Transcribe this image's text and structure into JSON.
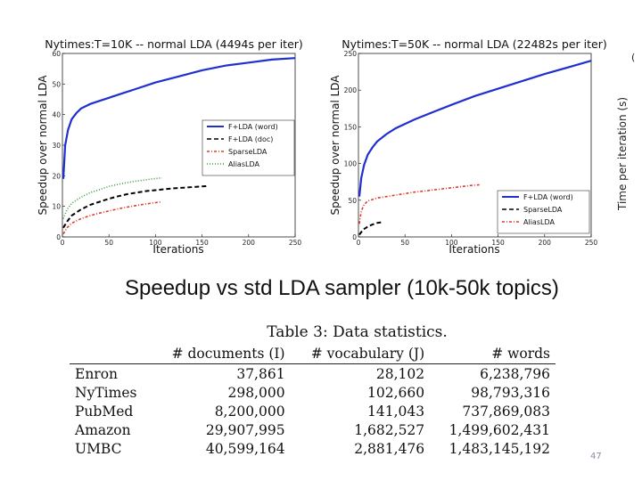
{
  "chart_data": [
    {
      "type": "line",
      "title": "Nytimes:T=10K -- normal LDA (4494s per iter)",
      "xlabel": "Iterations",
      "ylabel": "Speedup over normal LDA",
      "xlim": [
        0,
        250
      ],
      "ylim": [
        0,
        60
      ],
      "xticks": [
        0,
        50,
        100,
        150,
        200,
        250
      ],
      "yticks": [
        0,
        10,
        20,
        30,
        40,
        50,
        60
      ],
      "legend_position": "center-right",
      "series": [
        {
          "name": "F+LDA (word)",
          "style": "solid",
          "color": "#1f2fd0",
          "x": [
            1,
            3,
            6,
            10,
            15,
            20,
            30,
            40,
            50,
            60,
            80,
            100,
            125,
            150,
            175,
            200,
            225,
            250
          ],
          "y": [
            19,
            30,
            35,
            38.5,
            40.5,
            42,
            43.5,
            44.5,
            45.5,
            46.5,
            48.5,
            50.5,
            52.5,
            54.5,
            56,
            57,
            58,
            58.5
          ]
        },
        {
          "name": "F+LDA (doc)",
          "style": "dashed",
          "color": "#000000",
          "x": [
            1,
            5,
            10,
            20,
            30,
            40,
            50,
            60,
            70,
            80,
            90,
            100,
            110,
            120,
            130,
            140,
            150,
            155
          ],
          "y": [
            3,
            5,
            7,
            9,
            10.5,
            11.5,
            12.5,
            13.3,
            14,
            14.5,
            15,
            15.3,
            15.6,
            15.9,
            16.1,
            16.3,
            16.5,
            16.6
          ]
        },
        {
          "name": "SparseLDA",
          "style": "dashdot",
          "color": "#e03a2a",
          "x": [
            1,
            5,
            10,
            20,
            30,
            40,
            50,
            60,
            70,
            80,
            90,
            100,
            107
          ],
          "y": [
            1,
            3,
            4.5,
            6,
            7,
            7.8,
            8.5,
            9.2,
            9.8,
            10.3,
            10.8,
            11.2,
            11.5
          ]
        },
        {
          "name": "AliasLDA",
          "style": "dotted",
          "color": "#3a9a3a",
          "x": [
            1,
            5,
            10,
            20,
            30,
            40,
            50,
            60,
            70,
            80,
            90,
            100,
            107
          ],
          "y": [
            6,
            9,
            11,
            13,
            14.5,
            15.5,
            16.5,
            17.2,
            17.8,
            18.3,
            18.7,
            19.1,
            19.3
          ]
        }
      ]
    },
    {
      "type": "line",
      "title": "Nytimes:T=50K -- normal LDA (22482s per iter)",
      "xlabel": "Iterations",
      "ylabel": "Speedup over normal LDA",
      "xlim": [
        0,
        250
      ],
      "ylim": [
        0,
        250
      ],
      "xticks": [
        0,
        50,
        100,
        150,
        200,
        250
      ],
      "yticks": [
        0,
        50,
        100,
        150,
        200,
        250
      ],
      "legend_position": "bottom-right",
      "series": [
        {
          "name": "F+LDA (word)",
          "style": "solid",
          "color": "#1f2fd0",
          "x": [
            1,
            3,
            6,
            10,
            15,
            20,
            30,
            40,
            50,
            60,
            80,
            100,
            125,
            150,
            175,
            200,
            225,
            250
          ],
          "y": [
            55,
            80,
            98,
            112,
            122,
            130,
            140,
            148,
            154,
            160,
            170,
            180,
            192,
            202,
            212,
            222,
            231,
            240
          ]
        },
        {
          "name": "SparseLDA",
          "style": "dashed",
          "color": "#000000",
          "x": [
            1,
            5,
            10,
            15,
            20,
            25
          ],
          "y": [
            3,
            10,
            14,
            17,
            19,
            20
          ]
        },
        {
          "name": "AliasLDA",
          "style": "dashdot",
          "color": "#e03a2a",
          "x": [
            1,
            3,
            6,
            10,
            15,
            20,
            30,
            40,
            50,
            60,
            70,
            80,
            90,
            100,
            110,
            120,
            130
          ],
          "y": [
            18,
            35,
            44,
            49,
            51,
            53,
            55,
            57,
            59,
            61,
            62.5,
            64,
            65.5,
            67,
            68.5,
            70,
            71
          ]
        }
      ]
    }
  ],
  "edge_chart": {
    "ylabel": "Time per iteration (s)",
    "tick_fragment": "("
  },
  "caption": "Speedup vs std LDA sampler (10k-50k topics)",
  "table": {
    "title": "Table 3: Data statistics.",
    "headers": [
      "",
      "# documents (I)",
      "# vocabulary (J)",
      "# words"
    ],
    "rows": [
      [
        "Enron",
        "37,861",
        "28,102",
        "6,238,796"
      ],
      [
        "NyTimes",
        "298,000",
        "102,660",
        "98,793,316"
      ],
      [
        "PubMed",
        "8,200,000",
        "141,043",
        "737,869,083"
      ],
      [
        "Amazon",
        "29,907,995",
        "1,682,527",
        "1,499,602,431"
      ],
      [
        "UMBC",
        "40,599,164",
        "2,881,476",
        "1,483,145,192"
      ]
    ]
  },
  "page_number": "47"
}
